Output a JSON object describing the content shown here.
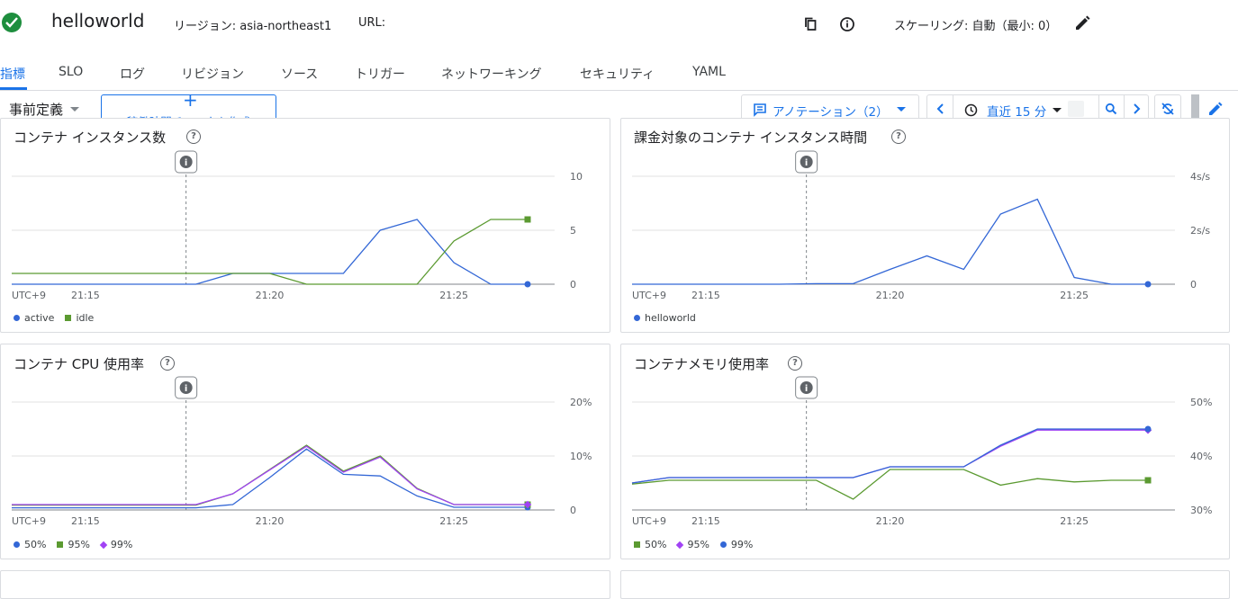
{
  "header": {
    "service_name": "helloworld",
    "region": "リージョン: asia-northeast1",
    "url_label": "URL:",
    "scaling": "スケーリング: 自動（最小: 0）"
  },
  "tabs": [
    {
      "label": "指標",
      "active": true
    },
    {
      "label": "SLO"
    },
    {
      "label": "ログ"
    },
    {
      "label": "リビジョン"
    },
    {
      "label": "ソース"
    },
    {
      "label": "トリガー"
    },
    {
      "label": "ネットワーキング"
    },
    {
      "label": "セキュリティ"
    },
    {
      "label": "YAML"
    }
  ],
  "toolbar": {
    "preset": "事前定義",
    "uptime_button": "稼働時間チェックを作成",
    "annotation_button": "アノテーション（2）",
    "time_range": "直近 15 分"
  },
  "colors": {
    "blue": "#3367d6",
    "green": "#5b9a31",
    "purple": "#a142f4",
    "accent": "#1a73e8"
  },
  "charts": [
    {
      "title": "コンテナ インスタンス数",
      "x_ticks": [
        "UTC+9",
        "21:15",
        "21:20",
        "21:25"
      ],
      "y_ticks": [
        "10",
        "5",
        "0"
      ],
      "legend": [
        {
          "name": "active",
          "color": "#3367d6",
          "shape": "circle"
        },
        {
          "name": "idle",
          "color": "#5b9a31",
          "shape": "square"
        }
      ]
    },
    {
      "title": "課金対象のコンテナ インスタンス時間",
      "x_ticks": [
        "UTC+9",
        "21:15",
        "21:20",
        "21:25"
      ],
      "y_ticks": [
        "4s/s",
        "2s/s",
        "0"
      ],
      "legend": [
        {
          "name": "helloworld",
          "color": "#3367d6",
          "shape": "circle"
        }
      ]
    },
    {
      "title": "コンテナ CPU 使用率",
      "x_ticks": [
        "UTC+9",
        "21:15",
        "21:20",
        "21:25"
      ],
      "y_ticks": [
        "20%",
        "10%",
        "0"
      ],
      "legend": [
        {
          "name": "50%",
          "color": "#3367d6",
          "shape": "circle"
        },
        {
          "name": "95%",
          "color": "#5b9a31",
          "shape": "square"
        },
        {
          "name": "99%",
          "color": "#a142f4",
          "shape": "diamond"
        }
      ]
    },
    {
      "title": "コンテナメモリ使用率",
      "x_ticks": [
        "UTC+9",
        "21:15",
        "21:20",
        "21:25"
      ],
      "y_ticks": [
        "50%",
        "40%",
        "30%"
      ],
      "legend": [
        {
          "name": "50%",
          "color": "#5b9a31",
          "shape": "square"
        },
        {
          "name": "95%",
          "color": "#a142f4",
          "shape": "diamond"
        },
        {
          "name": "99%",
          "color": "#3367d6",
          "shape": "circle"
        }
      ]
    }
  ],
  "chart_data": [
    {
      "type": "line",
      "title": "コンテナ インスタンス数",
      "x": [
        "21:13",
        "21:14",
        "21:15",
        "21:16",
        "21:17",
        "21:18",
        "21:19",
        "21:20",
        "21:21",
        "21:22",
        "21:23",
        "21:24",
        "21:25",
        "21:26",
        "21:27"
      ],
      "ylim": [
        0,
        10
      ],
      "annotation_x": "21:18",
      "series": [
        {
          "name": "active",
          "color": "#3367d6",
          "marker": "circle",
          "values": [
            0,
            0,
            0,
            0,
            0,
            0,
            1,
            1,
            1,
            1,
            5,
            6,
            2,
            0,
            0
          ]
        },
        {
          "name": "idle",
          "color": "#5b9a31",
          "marker": "square",
          "values": [
            1,
            1,
            1,
            1,
            1,
            1,
            1,
            1,
            0,
            0,
            0,
            0,
            4,
            6,
            6
          ]
        }
      ]
    },
    {
      "type": "line",
      "title": "課金対象のコンテナ インスタンス時間",
      "x": [
        "21:13",
        "21:14",
        "21:15",
        "21:16",
        "21:17",
        "21:18",
        "21:19",
        "21:20",
        "21:21",
        "21:22",
        "21:23",
        "21:24",
        "21:25",
        "21:26",
        "21:27"
      ],
      "ylim": [
        0,
        4
      ],
      "y_unit": "s/s",
      "annotation_x": "21:18",
      "series": [
        {
          "name": "helloworld",
          "color": "#3367d6",
          "marker": "circle",
          "values": [
            0,
            0,
            0,
            0,
            0,
            0.02,
            0.02,
            0.55,
            1.05,
            0.55,
            2.6,
            3.15,
            0.25,
            0,
            0
          ]
        }
      ]
    },
    {
      "type": "line",
      "title": "コンテナ CPU 使用率",
      "x": [
        "21:13",
        "21:14",
        "21:15",
        "21:16",
        "21:17",
        "21:18",
        "21:19",
        "21:20",
        "21:21",
        "21:22",
        "21:23",
        "21:24",
        "21:25",
        "21:26",
        "21:27"
      ],
      "ylim": [
        0,
        20
      ],
      "y_unit": "%",
      "annotation_x": "21:18",
      "series": [
        {
          "name": "50%",
          "color": "#3367d6",
          "marker": "circle",
          "values": [
            0.4,
            0.4,
            0.4,
            0.4,
            0.4,
            0.4,
            1.0,
            6.0,
            11.3,
            6.6,
            6.3,
            2.6,
            0.5,
            0.5,
            0.5
          ]
        },
        {
          "name": "95%",
          "color": "#5b9a31",
          "marker": "square",
          "values": [
            0.9,
            0.9,
            0.9,
            0.9,
            0.9,
            0.9,
            3.0,
            7.5,
            12.0,
            7.2,
            10.0,
            4.0,
            1.0,
            1.0,
            1.0
          ]
        },
        {
          "name": "99%",
          "color": "#a142f4",
          "marker": "diamond",
          "values": [
            1.0,
            1.0,
            1.0,
            1.0,
            1.0,
            1.0,
            3.0,
            7.4,
            11.8,
            7.0,
            9.8,
            3.9,
            1.0,
            1.0,
            1.0
          ]
        }
      ]
    },
    {
      "type": "line",
      "title": "コンテナメモリ使用率",
      "x": [
        "21:13",
        "21:14",
        "21:15",
        "21:16",
        "21:17",
        "21:18",
        "21:19",
        "21:20",
        "21:21",
        "21:22",
        "21:23",
        "21:24",
        "21:25",
        "21:26",
        "21:27"
      ],
      "ylim": [
        30,
        50
      ],
      "y_unit": "%",
      "annotation_x": "21:18",
      "series": [
        {
          "name": "50%",
          "color": "#5b9a31",
          "marker": "square",
          "values": [
            34.8,
            35.5,
            35.5,
            35.5,
            35.5,
            35.5,
            32.0,
            37.5,
            37.5,
            37.5,
            34.6,
            35.8,
            35.2,
            35.5,
            35.5
          ]
        },
        {
          "name": "95%",
          "color": "#a142f4",
          "marker": "diamond",
          "values": [
            35.0,
            36.0,
            36.0,
            36.0,
            36.0,
            36.0,
            36.0,
            38.0,
            38.0,
            38.0,
            41.8,
            44.8,
            44.8,
            44.8,
            44.8
          ]
        },
        {
          "name": "99%",
          "color": "#3367d6",
          "marker": "circle",
          "values": [
            35.0,
            36.0,
            36.0,
            36.0,
            36.0,
            36.0,
            36.0,
            38.0,
            38.0,
            38.0,
            42.0,
            45.0,
            45.0,
            45.0,
            45.0
          ]
        }
      ]
    }
  ]
}
